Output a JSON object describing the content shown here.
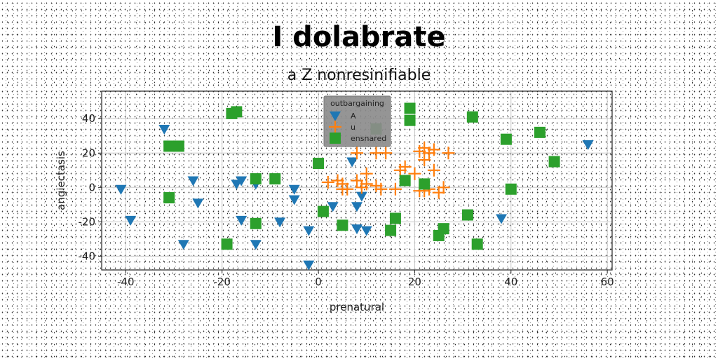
{
  "chart_data": {
    "type": "scatter",
    "title": "I dolabrate",
    "subtitle": "a Z nonresinifiable",
    "xlabel": "prenatural",
    "ylabel": "angiectasis",
    "xlim": [
      -45,
      61
    ],
    "ylim": [
      -48,
      56
    ],
    "xticks": [
      -40,
      -20,
      0,
      20,
      40,
      60
    ],
    "yticks": [
      -40,
      -20,
      0,
      20,
      40
    ],
    "grid": true,
    "legend": {
      "title": "outbargaining",
      "placement": "top-center"
    },
    "series": [
      {
        "name": "A",
        "marker": "triangle-down",
        "color": "#1f77b4",
        "points": [
          [
            -32,
            34
          ],
          [
            -41,
            -1
          ],
          [
            -39,
            -19
          ],
          [
            -28,
            -33
          ],
          [
            -26,
            4
          ],
          [
            -25,
            -9
          ],
          [
            -17,
            2
          ],
          [
            -16,
            4
          ],
          [
            -16,
            -19
          ],
          [
            -13,
            -33
          ],
          [
            -13,
            2
          ],
          [
            -8,
            -20
          ],
          [
            -5,
            -1
          ],
          [
            -5,
            -7
          ],
          [
            -2,
            -25
          ],
          [
            -2,
            -45
          ],
          [
            3,
            -11
          ],
          [
            7,
            15
          ],
          [
            8,
            -24
          ],
          [
            8,
            -11
          ],
          [
            9,
            -5
          ],
          [
            10,
            -25
          ],
          [
            38,
            -18
          ],
          [
            56,
            25
          ]
        ]
      },
      {
        "name": "u",
        "marker": "plus",
        "color": "#ff7f0e",
        "points": [
          [
            8,
            20
          ],
          [
            12,
            20
          ],
          [
            14,
            20
          ],
          [
            21,
            21
          ],
          [
            22,
            23
          ],
          [
            22,
            16
          ],
          [
            23,
            20
          ],
          [
            24,
            22
          ],
          [
            27,
            20
          ],
          [
            4,
            4
          ],
          [
            5,
            2
          ],
          [
            5,
            -1
          ],
          [
            8,
            4
          ],
          [
            9,
            0
          ],
          [
            10,
            2
          ],
          [
            12,
            1
          ],
          [
            17,
            10
          ],
          [
            18,
            12
          ],
          [
            16,
            -1
          ],
          [
            20,
            8
          ],
          [
            21,
            -2
          ],
          [
            23,
            -1
          ],
          [
            25,
            -3
          ],
          [
            26,
            0
          ],
          [
            2,
            3
          ],
          [
            6,
            -1
          ],
          [
            10,
            8
          ],
          [
            22,
            -2
          ],
          [
            24,
            10
          ],
          [
            13,
            -1
          ]
        ]
      },
      {
        "name": "ensnared",
        "marker": "square",
        "color": "#2ca02c",
        "points": [
          [
            -18,
            43
          ],
          [
            -17,
            44
          ],
          [
            -31,
            24
          ],
          [
            -29,
            24
          ],
          [
            -31,
            -6
          ],
          [
            -19,
            -33
          ],
          [
            -13,
            -21
          ],
          [
            -13,
            5
          ],
          [
            -9,
            5
          ],
          [
            0,
            14
          ],
          [
            1,
            -14
          ],
          [
            5,
            -22
          ],
          [
            15,
            -25
          ],
          [
            16,
            -18
          ],
          [
            19,
            46
          ],
          [
            19,
            39
          ],
          [
            18,
            4
          ],
          [
            22,
            2
          ],
          [
            25,
            -28
          ],
          [
            26,
            -24
          ],
          [
            31,
            -16
          ],
          [
            32,
            41
          ],
          [
            33,
            -33
          ],
          [
            39,
            28
          ],
          [
            40,
            -1
          ],
          [
            46,
            32
          ],
          [
            49,
            15
          ],
          [
            12,
            34
          ]
        ]
      }
    ]
  }
}
